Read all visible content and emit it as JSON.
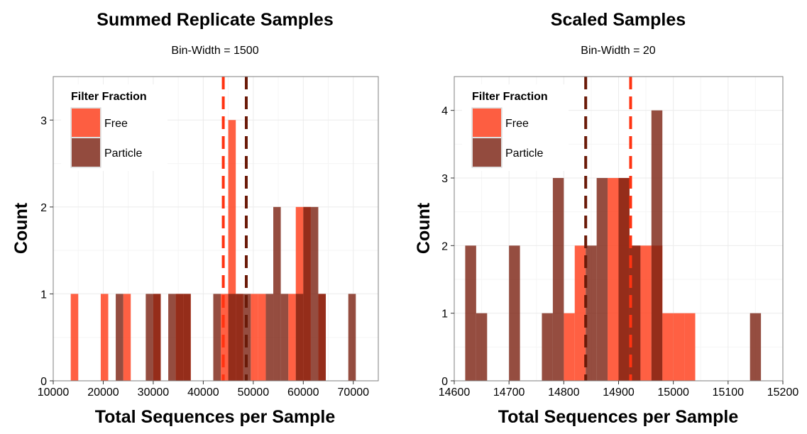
{
  "colors": {
    "free": "#FF4422",
    "particle": "#7A2010",
    "free_line": "#FF3311",
    "particle_line": "#6A1A08",
    "grid": "#EBEBEB",
    "panel_border": "#7F7F7F"
  },
  "chart_data": [
    {
      "type": "bar",
      "title": "Summed Replicate Samples",
      "subtitle": "Bin-Width = 1500",
      "xlabel": "Total Sequences per Sample",
      "ylabel": "Count",
      "xlim": [
        10000,
        75000
      ],
      "ylim": [
        0,
        3.5
      ],
      "xticks": [
        10000,
        20000,
        30000,
        40000,
        50000,
        60000,
        70000
      ],
      "xtick_labels": [
        "10000",
        "20000",
        "30000",
        "40000",
        "50000",
        "60000",
        "70000"
      ],
      "yticks": [
        0,
        1,
        2,
        3
      ],
      "ytick_labels": [
        "0",
        "1",
        "2",
        "3"
      ],
      "bin_width": 1500,
      "legend": {
        "title": "Filter Fraction",
        "position": "top-left",
        "entries": [
          "Free",
          "Particle"
        ]
      },
      "series": [
        {
          "name": "Free",
          "bins": [
            {
              "x": 14250,
              "count": 1
            },
            {
              "x": 20250,
              "count": 1
            },
            {
              "x": 24750,
              "count": 1
            },
            {
              "x": 30750,
              "count": 1
            },
            {
              "x": 35250,
              "count": 1
            },
            {
              "x": 36750,
              "count": 1
            },
            {
              "x": 44250,
              "count": 1
            },
            {
              "x": 45750,
              "count": 3
            },
            {
              "x": 47250,
              "count": 1
            },
            {
              "x": 50250,
              "count": 1
            },
            {
              "x": 51750,
              "count": 1
            },
            {
              "x": 57750,
              "count": 1
            },
            {
              "x": 59250,
              "count": 2
            },
            {
              "x": 60750,
              "count": 2
            },
            {
              "x": 63750,
              "count": 1
            }
          ],
          "mean": 44000
        },
        {
          "name": "Particle",
          "bins": [
            {
              "x": 23250,
              "count": 1
            },
            {
              "x": 29250,
              "count": 1
            },
            {
              "x": 30750,
              "count": 1
            },
            {
              "x": 33750,
              "count": 1
            },
            {
              "x": 35250,
              "count": 1
            },
            {
              "x": 36750,
              "count": 1
            },
            {
              "x": 42750,
              "count": 1
            },
            {
              "x": 45750,
              "count": 1
            },
            {
              "x": 47250,
              "count": 1
            },
            {
              "x": 48750,
              "count": 1
            },
            {
              "x": 53250,
              "count": 1
            },
            {
              "x": 54750,
              "count": 2
            },
            {
              "x": 56250,
              "count": 1
            },
            {
              "x": 59250,
              "count": 1
            },
            {
              "x": 60750,
              "count": 2
            },
            {
              "x": 62250,
              "count": 2
            },
            {
              "x": 63750,
              "count": 1
            },
            {
              "x": 69750,
              "count": 1
            }
          ],
          "mean": 48600
        }
      ]
    },
    {
      "type": "bar",
      "title": "Scaled Samples",
      "subtitle": "Bin-Width = 20",
      "xlabel": "Total Sequences per Sample",
      "ylabel": "Count",
      "xlim": [
        14600,
        15200
      ],
      "ylim": [
        0,
        4.5
      ],
      "xticks": [
        14600,
        14700,
        14800,
        14900,
        15000,
        15100,
        15200
      ],
      "xtick_labels": [
        "14600",
        "14700",
        "14800",
        "14900",
        "15000",
        "15100",
        "15200"
      ],
      "yticks": [
        0,
        1,
        2,
        3,
        4
      ],
      "ytick_labels": [
        "0",
        "1",
        "2",
        "3",
        "4"
      ],
      "bin_width": 20,
      "legend": {
        "title": "Filter Fraction",
        "position": "top-left",
        "entries": [
          "Free",
          "Particle"
        ]
      },
      "series": [
        {
          "name": "Free",
          "bins": [
            {
              "x": 14810,
              "count": 1
            },
            {
              "x": 14830,
              "count": 2
            },
            {
              "x": 14890,
              "count": 3
            },
            {
              "x": 14910,
              "count": 3
            },
            {
              "x": 14930,
              "count": 2
            },
            {
              "x": 14950,
              "count": 2
            },
            {
              "x": 14970,
              "count": 2
            },
            {
              "x": 14990,
              "count": 1
            },
            {
              "x": 15010,
              "count": 1
            },
            {
              "x": 15030,
              "count": 1
            }
          ],
          "mean": 14922
        },
        {
          "name": "Particle",
          "bins": [
            {
              "x": 14630,
              "count": 2
            },
            {
              "x": 14650,
              "count": 1
            },
            {
              "x": 14710,
              "count": 2
            },
            {
              "x": 14770,
              "count": 1
            },
            {
              "x": 14790,
              "count": 3
            },
            {
              "x": 14850,
              "count": 2
            },
            {
              "x": 14870,
              "count": 3
            },
            {
              "x": 14910,
              "count": 3
            },
            {
              "x": 14930,
              "count": 2
            },
            {
              "x": 14970,
              "count": 4
            },
            {
              "x": 15150,
              "count": 1
            }
          ],
          "mean": 14840
        }
      ]
    }
  ]
}
